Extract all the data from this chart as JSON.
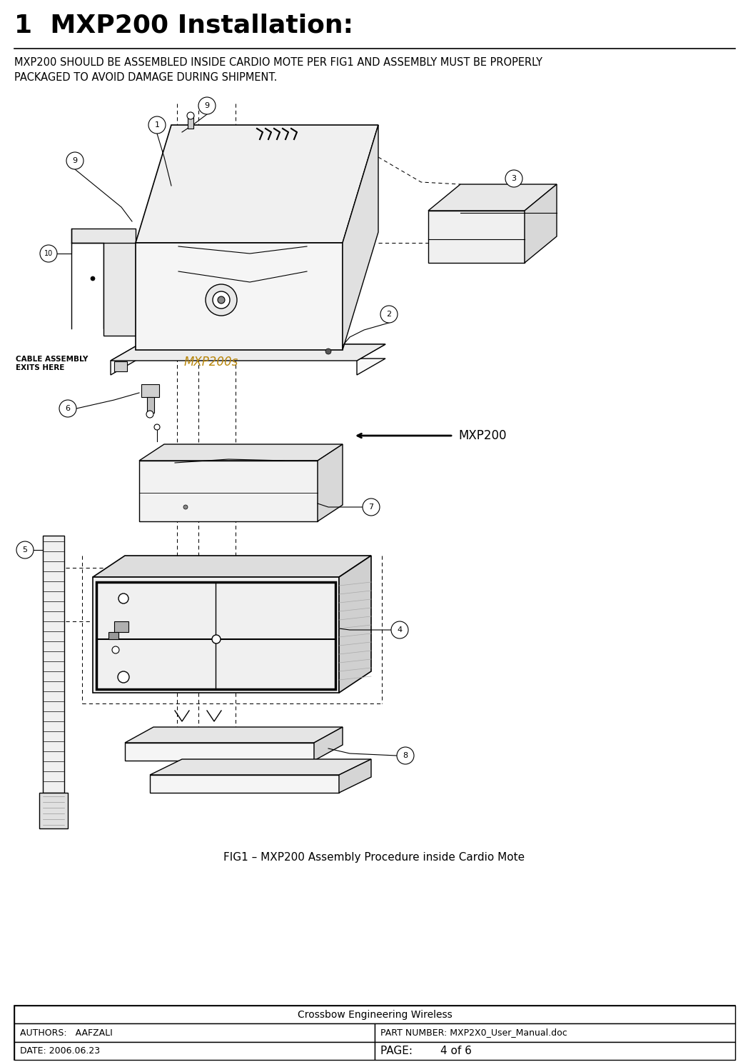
{
  "title": "1  MXP200 Installation:",
  "body_text": "MXP200 SHOULD BE ASSEMBLED INSIDE CARDIO MOTE PER FIG1 AND ASSEMBLY MUST BE PROPERLY\nPACKAGED TO AVOID DAMAGE DURING SHIPMENT.",
  "fig_caption": "FIG1 – MXP200 Assembly Procedure inside Cardio Mote",
  "mxp200_label_arrow": "MXP200",
  "mxp200_label_diagram": "MXP200s",
  "cable_label": "CABLE ASSEMBLY\nEXITS HERE",
  "footer_company": "Crossbow Engineering Wireless",
  "footer_authors_label": "AUTHORS:   AAFZALI",
  "footer_part_label": "PART NUMBER: MXP2X0_User_Manual.doc",
  "footer_date_label": "DATE: 2006.06.23",
  "footer_page_label": "PAGE:",
  "footer_page_value": "4 of 6",
  "bg_color": "#ffffff",
  "text_color": "#000000",
  "title_fontsize": 26,
  "body_fontsize": 10.5,
  "caption_fontsize": 11,
  "footer_fontsize": 9,
  "diagram_color": "#b8860b",
  "border_color": "#000000"
}
